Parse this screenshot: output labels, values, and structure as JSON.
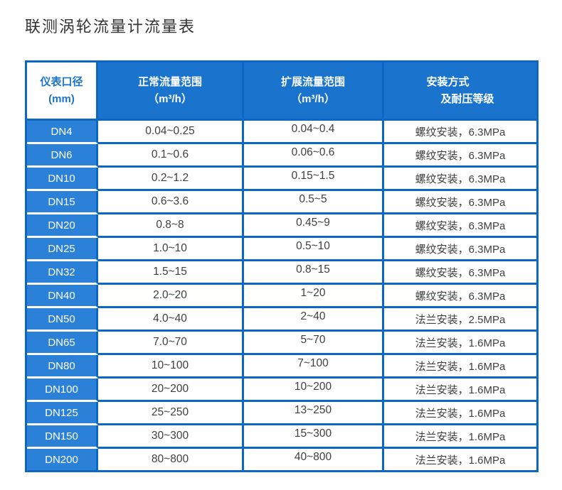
{
  "page": {
    "title": "联测涡轮流量计流量表"
  },
  "colors": {
    "header_bg": "#1a74cd",
    "row_header_bg": "#2b80d8",
    "border": "#0d68c3",
    "header_text": "#ffffff",
    "diameter_header_text": "#1a74cd",
    "body_text": "#3f3f3f",
    "title_text": "#333333"
  },
  "table": {
    "headers": [
      {
        "line1": "仪表口径",
        "line2": "(mm)"
      },
      {
        "line1": "正常流量范围",
        "line2": "（m³/h）"
      },
      {
        "line1": "扩展流量范围",
        "line2": "（m³/h）"
      },
      {
        "line1": "安装方式",
        "line2": "及耐压等级"
      }
    ],
    "rows": [
      [
        "DN4",
        "0.04~0.25",
        "0.04~0.4",
        "螺纹安装，6.3MPa"
      ],
      [
        "DN6",
        "0.1~0.6",
        "0.06~0.6",
        "螺纹安装，6.3MPa"
      ],
      [
        "DN10",
        "0.2~1.2",
        "0.15~1.5",
        "螺纹安装，6.3MPa"
      ],
      [
        "DN15",
        "0.6~3.6",
        "0.5~5",
        "螺纹安装，6.3MPa"
      ],
      [
        "DN20",
        "0.8~8",
        "0.45~9",
        "螺纹安装，6.3MPa"
      ],
      [
        "DN25",
        "1.0~10",
        "0.5~10",
        "螺纹安装，6.3MPa"
      ],
      [
        "DN32",
        "1.5~15",
        "0.8~15",
        "螺纹安装，6.3MPa"
      ],
      [
        "DN40",
        "2.0~20",
        "1~20",
        "螺纹安装，6.3MPa"
      ],
      [
        "DN50",
        "4.0~40",
        "2~40",
        "法兰安装，2.5MPa"
      ],
      [
        "DN65",
        "7.0~70",
        "5~70",
        "法兰安装，1.6MPa"
      ],
      [
        "DN80",
        "10~100",
        "7~100",
        "法兰安装，1.6MPa"
      ],
      [
        "DN100",
        "20~200",
        "10~200",
        "法兰安装，1.6MPa"
      ],
      [
        "DN125",
        "25~250",
        "13~250",
        "法兰安装，1.6MPa"
      ],
      [
        "DN150",
        "30~300",
        "15~300",
        "法兰安装，1.6MPa"
      ],
      [
        "DN200",
        "80~800",
        "40~800",
        "法兰安装，1.6MPa"
      ]
    ]
  }
}
